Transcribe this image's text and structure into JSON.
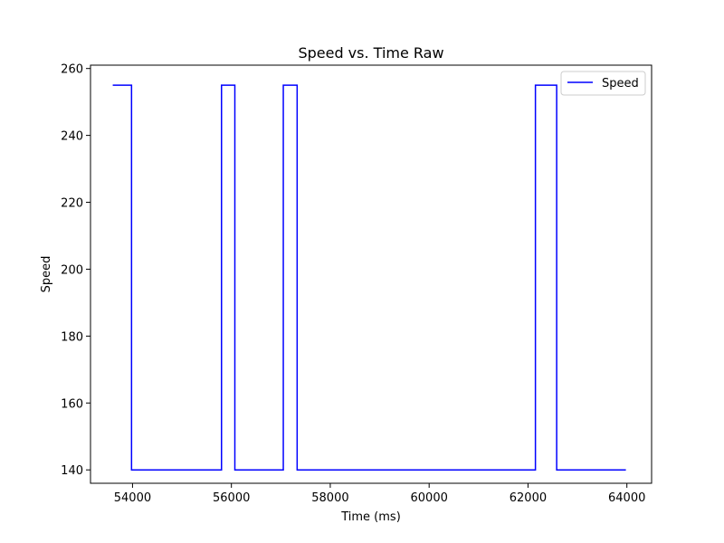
{
  "chart_data": {
    "type": "line",
    "title": "Speed vs. Time Raw",
    "xlabel": "Time (ms)",
    "ylabel": "Speed",
    "xlim": [
      53150,
      64500
    ],
    "ylim": [
      136,
      261
    ],
    "x_ticks": [
      54000,
      56000,
      58000,
      60000,
      62000,
      64000
    ],
    "y_ticks": [
      140,
      160,
      180,
      200,
      220,
      240,
      260
    ],
    "grid": false,
    "legend": "top-right",
    "colors": {
      "series": "#0000ff",
      "axes": "#000000",
      "legend_border": "#cccccc"
    },
    "series": [
      {
        "name": "Speed",
        "step": "post",
        "points": [
          [
            53600,
            255
          ],
          [
            53980,
            140
          ],
          [
            55800,
            255
          ],
          [
            56070,
            140
          ],
          [
            57050,
            255
          ],
          [
            57330,
            140
          ],
          [
            62150,
            255
          ],
          [
            62580,
            140
          ],
          [
            63980,
            140
          ]
        ]
      }
    ]
  }
}
